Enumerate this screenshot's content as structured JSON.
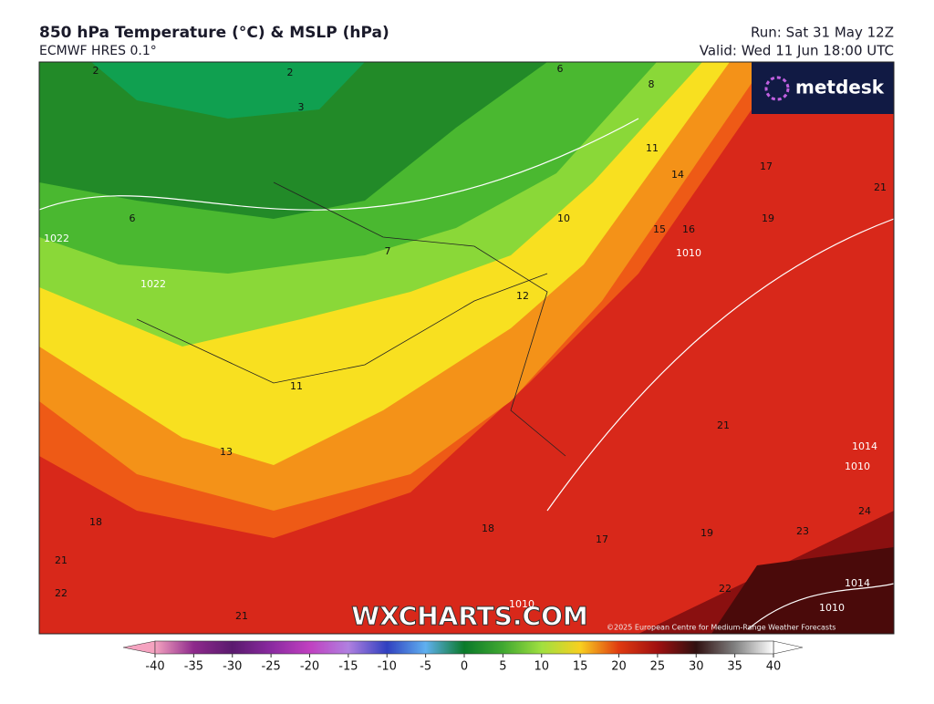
{
  "header": {
    "title": "850 hPa Temperature (°C) & MSLP (hPa)",
    "subtitle": "ECMWF HRES 0.1°",
    "run": "Run: Sat 31 May 12Z",
    "valid": "Valid: Wed 11 Jun 18:00 UTC"
  },
  "logo": "metdesk",
  "watermark": "WXCHARTS.COM",
  "copyright": "©2025 European Centre for Medium-Range Weather Forecasts",
  "map_labels": [
    "2",
    "2",
    "3",
    "6",
    "8",
    "11",
    "14",
    "15",
    "16",
    "17",
    "19",
    "21",
    "10",
    "7",
    "6",
    "12",
    "11",
    "13",
    "18",
    "18",
    "17",
    "19",
    "21",
    "21",
    "22",
    "22",
    "23",
    "24",
    "21"
  ],
  "pressure_labels": [
    "1022",
    "1022",
    "1010",
    "1014",
    "1010",
    "1014",
    "1010",
    "1010"
  ],
  "colorbar": {
    "ticks": [
      -40,
      -35,
      -30,
      -25,
      -20,
      -15,
      -10,
      -5,
      0,
      5,
      10,
      15,
      20,
      25,
      30,
      35,
      40
    ],
    "colors": [
      "#f5a3c0",
      "#8e2a8c",
      "#5a1a6e",
      "#8a2aa0",
      "#c040c0",
      "#b080e0",
      "#3040c0",
      "#60b0f0",
      "#0a7a2a",
      "#40a830",
      "#a0e040",
      "#f8d020",
      "#e03a10",
      "#a01010",
      "#301010",
      "#808080",
      "#ffffff"
    ]
  }
}
